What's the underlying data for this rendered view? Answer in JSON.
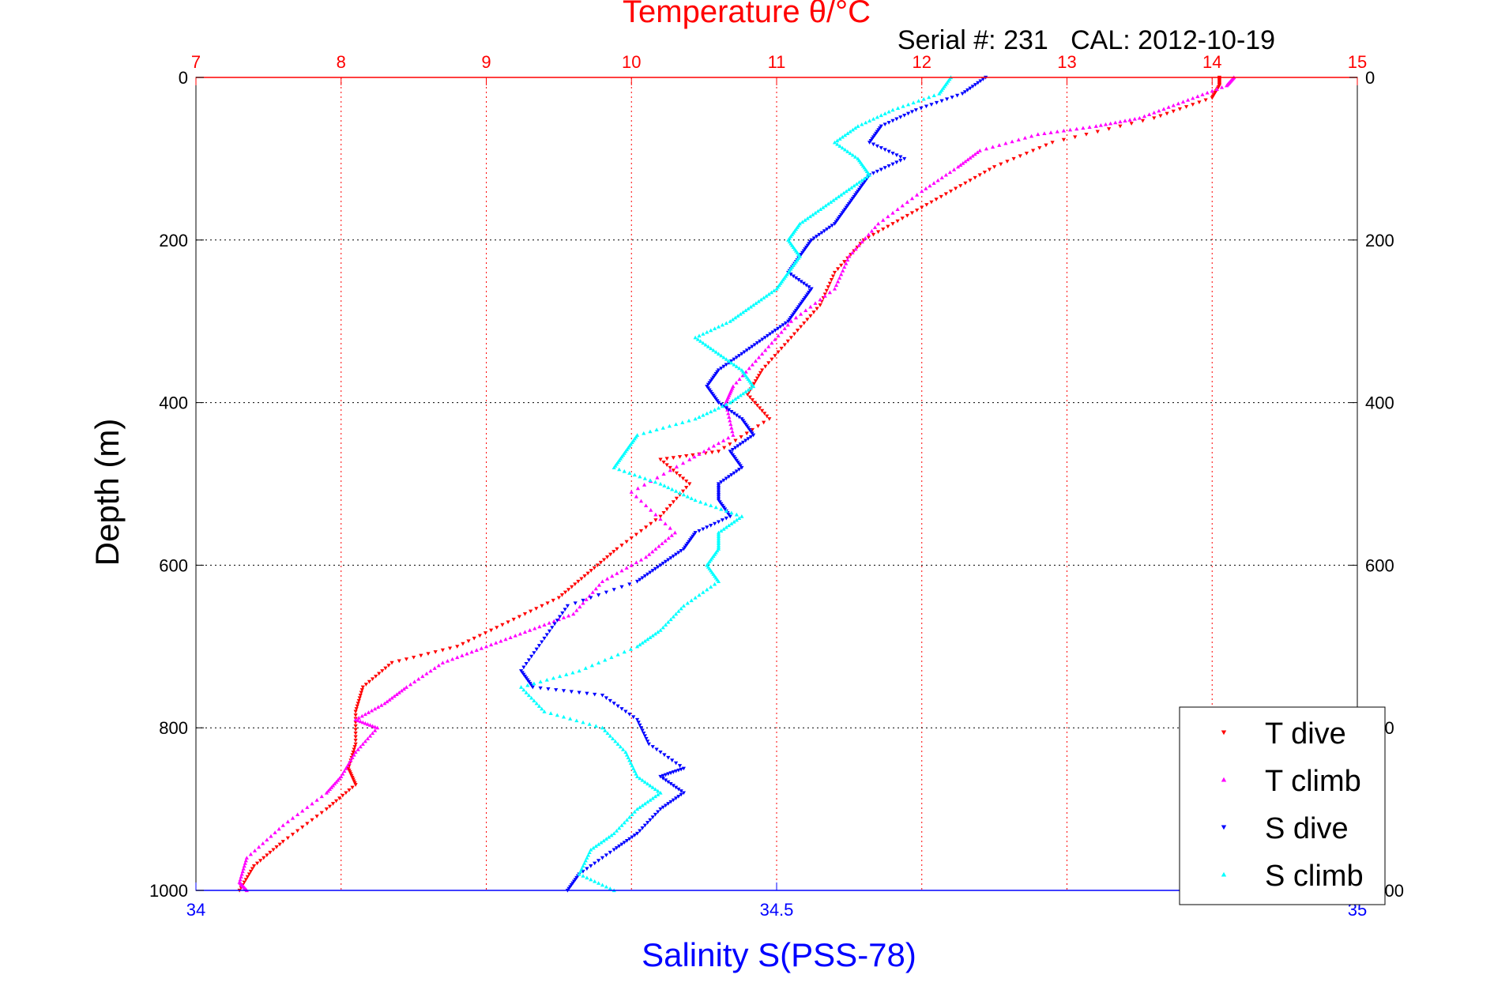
{
  "chart_data": {
    "type": "scatter",
    "title": "Temperature θ/°C",
    "subtitle": "Serial #: 231   CAL: 2012-10-19",
    "ylabel": "Depth (m)",
    "xlabel_bottom": "Salinity S(PSS-78)",
    "ylim": [
      1000,
      0
    ],
    "y_ticks": [
      0,
      200,
      400,
      600,
      800,
      1000
    ],
    "top_axis": {
      "quantity": "Temperature θ/°C",
      "range": [
        7,
        15
      ],
      "ticks": [
        7,
        8,
        9,
        10,
        11,
        12,
        13,
        14,
        15
      ],
      "grid": true,
      "color": "#ff0000"
    },
    "bottom_axis": {
      "quantity": "Salinity S(PSS-78)",
      "range": [
        34,
        35
      ],
      "ticks": [
        "34",
        "34.5",
        "35"
      ],
      "color": "#0000ff"
    },
    "grid": true,
    "legend": {
      "placement": "bottom-right",
      "entries": [
        {
          "label": "T dive",
          "color": "#ff0000",
          "marker": "triangle-down"
        },
        {
          "label": "T climb",
          "color": "#ff00ff",
          "marker": "triangle-up"
        },
        {
          "label": "S dive",
          "color": "#0000ff",
          "marker": "triangle-down"
        },
        {
          "label": "S climb",
          "color": "#00ffff",
          "marker": "triangle-up"
        }
      ]
    },
    "series": [
      {
        "name": "T dive",
        "axis": "top",
        "color": "#ff0000",
        "marker": "triangle-down",
        "x": [
          14.05,
          14.05,
          14.0,
          13.6,
          12.9,
          12.5,
          12.2,
          11.9,
          11.6,
          11.4,
          11.3,
          11.1,
          10.9,
          10.8,
          10.95,
          10.6,
          10.2,
          10.4,
          10.2,
          9.9,
          9.7,
          9.5,
          9.15,
          8.8,
          8.35,
          8.15,
          8.1,
          8.1,
          8.05,
          8.1,
          7.9,
          7.6,
          7.4,
          7.3
        ],
        "y": [
          0,
          10,
          25,
          50,
          80,
          110,
          140,
          170,
          200,
          240,
          280,
          320,
          360,
          390,
          420,
          460,
          470,
          500,
          540,
          580,
          610,
          640,
          670,
          700,
          720,
          750,
          780,
          820,
          850,
          870,
          900,
          940,
          970,
          1000
        ]
      },
      {
        "name": "T climb",
        "axis": "top",
        "color": "#ff00ff",
        "marker": "triangle-up",
        "x": [
          14.15,
          14.1,
          13.8,
          13.5,
          13.2,
          12.8,
          12.4,
          12.25,
          12.0,
          11.7,
          11.5,
          11.4,
          11.1,
          10.9,
          10.7,
          10.65,
          10.7,
          10.4,
          10.0,
          10.3,
          10.1,
          9.8,
          9.6,
          9.3,
          9.0,
          8.7,
          8.45,
          8.3,
          8.1,
          8.25,
          8.1,
          8.0,
          7.9,
          7.6,
          7.35,
          7.3,
          7.35
        ],
        "y": [
          0,
          10,
          30,
          50,
          60,
          70,
          90,
          110,
          140,
          180,
          220,
          260,
          300,
          340,
          380,
          400,
          440,
          470,
          510,
          560,
          590,
          620,
          660,
          680,
          700,
          720,
          750,
          770,
          790,
          800,
          830,
          860,
          880,
          920,
          960,
          990,
          1000
        ]
      },
      {
        "name": "S dive",
        "axis": "bottom",
        "color": "#0000ff",
        "marker": "triangle-down",
        "x": [
          34.68,
          34.66,
          34.62,
          34.59,
          34.58,
          34.61,
          34.58,
          34.57,
          34.56,
          34.55,
          34.53,
          34.52,
          34.51,
          34.53,
          34.52,
          34.51,
          34.49,
          34.47,
          34.45,
          34.44,
          34.45,
          34.47,
          34.48,
          34.46,
          34.47,
          34.45,
          34.45,
          34.46,
          34.43,
          34.42,
          34.4,
          34.38,
          34.32,
          34.3,
          34.28,
          34.29,
          34.35,
          34.38,
          34.39,
          34.42,
          34.4,
          34.42,
          34.4,
          34.38,
          34.36,
          34.33,
          34.32
        ],
        "y": [
          0,
          20,
          40,
          60,
          80,
          100,
          120,
          140,
          160,
          180,
          200,
          220,
          240,
          260,
          280,
          300,
          320,
          340,
          360,
          380,
          400,
          420,
          440,
          460,
          480,
          500,
          520,
          540,
          560,
          580,
          600,
          620,
          650,
          690,
          730,
          750,
          760,
          790,
          820,
          850,
          860,
          880,
          900,
          930,
          950,
          980,
          1000
        ]
      },
      {
        "name": "S climb",
        "axis": "bottom",
        "color": "#00ffff",
        "marker": "triangle-up",
        "x": [
          34.65,
          34.64,
          34.6,
          34.57,
          34.55,
          34.57,
          34.58,
          34.56,
          34.54,
          34.52,
          34.51,
          34.52,
          34.51,
          34.5,
          34.48,
          34.46,
          34.43,
          34.45,
          34.47,
          34.48,
          34.46,
          34.43,
          34.38,
          34.37,
          34.36,
          34.4,
          34.43,
          34.47,
          34.45,
          34.45,
          34.44,
          34.45,
          34.42,
          34.4,
          34.38,
          34.33,
          34.28,
          34.3,
          34.35,
          34.37,
          34.38,
          34.4,
          34.38,
          34.36,
          34.34,
          34.33,
          34.36
        ],
        "y": [
          0,
          20,
          40,
          60,
          80,
          100,
          120,
          140,
          160,
          180,
          200,
          220,
          240,
          260,
          280,
          300,
          320,
          340,
          360,
          380,
          400,
          420,
          440,
          460,
          480,
          500,
          520,
          540,
          560,
          580,
          600,
          620,
          650,
          680,
          700,
          730,
          750,
          780,
          800,
          830,
          860,
          880,
          900,
          930,
          950,
          980,
          1000
        ]
      }
    ]
  }
}
